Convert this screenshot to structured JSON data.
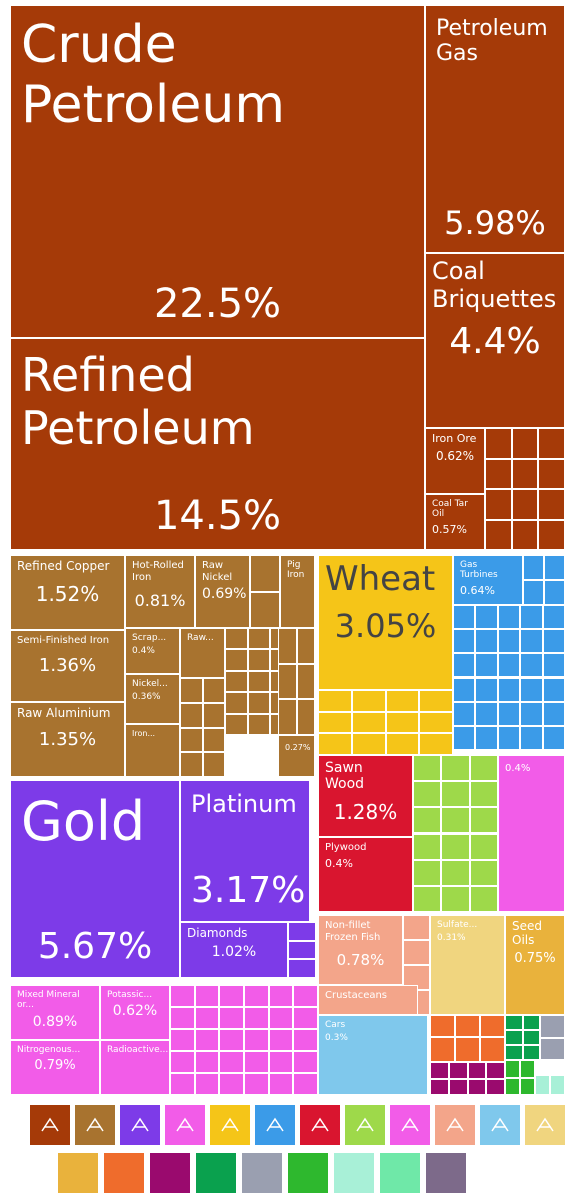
{
  "chart_data": {
    "type": "treemap",
    "categories": [
      "Crude Petroleum",
      "Refined Petroleum",
      "Petroleum Gas",
      "Coal Briquettes",
      "Iron Ore",
      "Coal Tar Oil",
      "Refined Copper",
      "Semi-Finished Iron",
      "Raw Aluminium",
      "Hot-Rolled Iron",
      "Raw Nickel",
      "Pig Iron",
      "Scrap...",
      "Raw...",
      "Nickel...",
      "Iron...",
      null,
      "Wheat",
      "Gas Turbines",
      "Gold",
      "Platinum",
      "Diamonds",
      "Sawn Wood",
      "Plywood",
      null,
      "Non-fillet Frozen Fish",
      "Crustaceans",
      "Sulfate...",
      "Seed Oils",
      "Cars",
      "Mixed Mineral or...",
      "Potassic...",
      "Nitrogenous...",
      "Radioactive..."
    ],
    "values": [
      22.5,
      14.5,
      5.98,
      4.4,
      0.62,
      0.57,
      1.52,
      1.36,
      1.35,
      0.81,
      0.69,
      0.3,
      0.4,
      0.35,
      0.36,
      0.3,
      0.27,
      3.05,
      0.64,
      5.67,
      3.17,
      1.02,
      1.28,
      0.4,
      0.4,
      0.78,
      0.3,
      0.31,
      0.75,
      0.3,
      0.89,
      0.62,
      0.79,
      0.4
    ],
    "value_labels": [
      "22.5%",
      "14.5%",
      "5.98%",
      "4.4%",
      "0.62%",
      "0.57%",
      "1.52%",
      "1.36%",
      "1.35%",
      "0.81%",
      "0.69%",
      null,
      "0.4%",
      null,
      "0.36%",
      null,
      "0.27%",
      "3.05%",
      "0.64%",
      "5.67%",
      "3.17%",
      "1.02%",
      "1.28%",
      "0.4%",
      "0.4%",
      "0.78%",
      null,
      "0.31%",
      "0.75%",
      "0.3%",
      "0.89%",
      "0.62%",
      "0.79%",
      null
    ],
    "colors": [
      "#a53a08",
      "#a53a08",
      "#a53a08",
      "#a53a08",
      "#a53a08",
      "#a53a08",
      "#a8732f",
      "#a8732f",
      "#a8732f",
      "#a8732f",
      "#a8732f",
      "#a8732f",
      "#a8732f",
      "#a8732f",
      "#a8732f",
      "#a8732f",
      "#a8732f",
      "#f5c518",
      "#3b9be8",
      "#7d3be8",
      "#7d3be8",
      "#7d3be8",
      "#d9152f",
      "#d9152f",
      "#f25ce8",
      "#f3a58a",
      "#f3a58a",
      "#f0d57f",
      "#e9b23c",
      "#7fc8ec",
      "#f25ce8",
      "#f25ce8",
      "#f25ce8",
      "#f25ce8"
    ],
    "legend_colors": [
      "#a53a08",
      "#a8732f",
      "#7d3be8",
      "#f25ce8",
      "#f5c518",
      "#3b9be8",
      "#d9152f",
      "#9ed94a",
      "#f25ce8",
      "#f3a58a",
      "#7fc8ec",
      "#f0d57f",
      "#e9b23c",
      "#ef6c2c",
      "#9a0a6e",
      "#0aa14e",
      "#9a9fb0",
      "#2eb82e",
      "#a8f0d7",
      "#6fe8a8",
      "#7d6a8a"
    ]
  }
}
